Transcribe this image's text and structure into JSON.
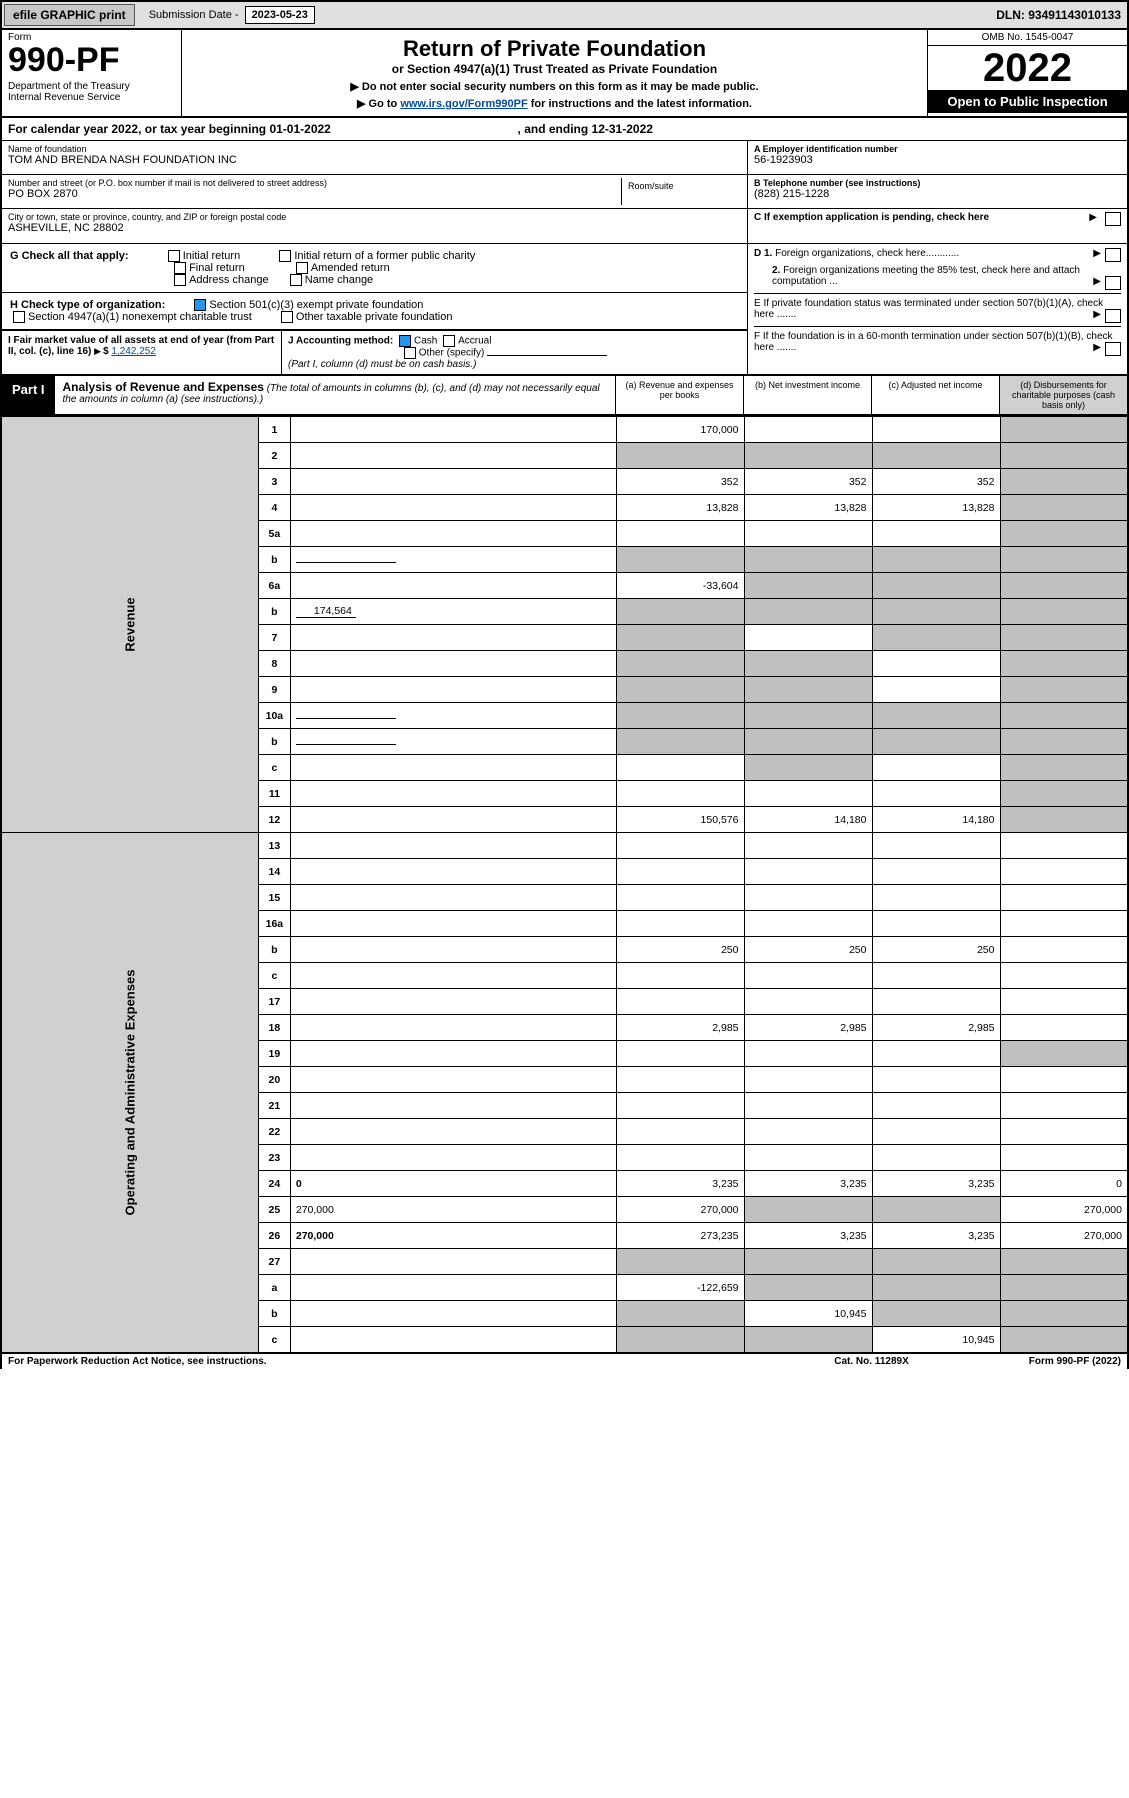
{
  "topbar": {
    "efile_btn": "efile GRAPHIC print",
    "sub_label": "Submission Date - ",
    "sub_date": "2023-05-23",
    "dln": "DLN: 93491143010133"
  },
  "header": {
    "form_label": "Form",
    "form_num": "990-PF",
    "dept": "Department of the Treasury\nInternal Revenue Service",
    "title": "Return of Private Foundation",
    "sub1": "or Section 4947(a)(1) Trust Treated as Private Foundation",
    "sub2a": "▶ Do not enter social security numbers on this form as it may be made public.",
    "sub2b": "▶ Go to ",
    "link": "www.irs.gov/Form990PF",
    "sub2c": " for instructions and the latest information.",
    "omb": "OMB No. 1545-0047",
    "year": "2022",
    "open": "Open to Public Inspection"
  },
  "calyear": {
    "prefix": "For calendar year 2022, or tax year beginning ",
    "begin": "01-01-2022",
    "mid": " , and ending ",
    "end": "12-31-2022"
  },
  "info": {
    "name_label": "Name of foundation",
    "name": "TOM AND BRENDA NASH FOUNDATION INC",
    "addr_label": "Number and street (or P.O. box number if mail is not delivered to street address)",
    "addr": "PO BOX 2870",
    "room_label": "Room/suite",
    "city_label": "City or town, state or province, country, and ZIP or foreign postal code",
    "city": "ASHEVILLE, NC  28802",
    "a_label": "A Employer identification number",
    "a_val": "56-1923903",
    "b_label": "B Telephone number (see instructions)",
    "b_val": "(828) 215-1228",
    "c_label": "C If exemption application is pending, check here"
  },
  "checks": {
    "g": "G Check all that apply:",
    "g_opts": [
      "Initial return",
      "Initial return of a former public charity",
      "Final return",
      "Amended return",
      "Address change",
      "Name change"
    ],
    "h": "H Check type of organization:",
    "h1": "Section 501(c)(3) exempt private foundation",
    "h2": "Section 4947(a)(1) nonexempt charitable trust",
    "h3": "Other taxable private foundation",
    "d1": "D 1. Foreign organizations, check here............",
    "d2": "2. Foreign organizations meeting the 85% test, check here and attach computation ...",
    "e": "E  If private foundation status was terminated under section 507(b)(1)(A), check here .......",
    "i_label": "I Fair market value of all assets at end of year (from Part II, col. (c), line 16)",
    "i_val": "1,242,252",
    "j_label": "J Accounting method:",
    "j_cash": "Cash",
    "j_accrual": "Accrual",
    "j_other": "Other (specify)",
    "j_note": "(Part I, column (d) must be on cash basis.)",
    "f": "F  If the foundation is in a 60-month termination under section 507(b)(1)(B), check here ......."
  },
  "part1": {
    "tab": "Part I",
    "title": "Analysis of Revenue and Expenses",
    "note": "(The total of amounts in columns (b), (c), and (d) may not necessarily equal the amounts in column (a) (see instructions).)",
    "cols": [
      "(a)  Revenue and expenses per books",
      "(b)  Net investment income",
      "(c)  Adjusted net income",
      "(d)  Disbursements for charitable purposes (cash basis only)"
    ]
  },
  "side_labels": {
    "rev": "Revenue",
    "exp": "Operating and Administrative Expenses"
  },
  "rows": [
    {
      "n": "1",
      "d": "",
      "a": "170,000",
      "b": "",
      "c": "",
      "d_shade": true
    },
    {
      "n": "2",
      "d": "",
      "a": "",
      "b": "",
      "c": "",
      "shade_all": true
    },
    {
      "n": "3",
      "d": "",
      "a": "352",
      "b": "352",
      "c": "352",
      "d_shade": true
    },
    {
      "n": "4",
      "d": "",
      "a": "13,828",
      "b": "13,828",
      "c": "13,828",
      "d_shade": true
    },
    {
      "n": "5a",
      "d": "",
      "a": "",
      "b": "",
      "c": "",
      "d_shade": true
    },
    {
      "n": "b",
      "d": "",
      "a": "",
      "b": "",
      "c": "",
      "shade_all": true,
      "inline": true
    },
    {
      "n": "6a",
      "d": "",
      "a": "-33,604",
      "b": "",
      "c": "",
      "bcd_shade": true
    },
    {
      "n": "b",
      "d": "",
      "inline_val": "174,564",
      "a": "",
      "b": "",
      "c": "",
      "shade_all": true
    },
    {
      "n": "7",
      "d": "",
      "a": "",
      "b": "",
      "c": "",
      "a_shade": true,
      "cd_shade": true
    },
    {
      "n": "8",
      "d": "",
      "a": "",
      "b": "",
      "c": "",
      "ab_shade": true,
      "d_shade": true
    },
    {
      "n": "9",
      "d": "",
      "a": "",
      "b": "",
      "c": "",
      "ab_shade": true,
      "d_shade": true
    },
    {
      "n": "10a",
      "d": "",
      "a": "",
      "b": "",
      "c": "",
      "shade_all": true,
      "inline": true
    },
    {
      "n": "b",
      "d": "",
      "a": "",
      "b": "",
      "c": "",
      "shade_all": true,
      "inline": true
    },
    {
      "n": "c",
      "d": "",
      "a": "",
      "b": "",
      "c": "",
      "b_shade": true,
      "d_shade": true
    },
    {
      "n": "11",
      "d": "",
      "a": "",
      "b": "",
      "c": "",
      "d_shade": true
    },
    {
      "n": "12",
      "d": "",
      "a": "150,576",
      "b": "14,180",
      "c": "14,180",
      "bold": true,
      "d_shade": true
    },
    {
      "n": "13",
      "d": "",
      "a": "",
      "b": "",
      "c": ""
    },
    {
      "n": "14",
      "d": "",
      "a": "",
      "b": "",
      "c": ""
    },
    {
      "n": "15",
      "d": "",
      "a": "",
      "b": "",
      "c": ""
    },
    {
      "n": "16a",
      "d": "",
      "a": "",
      "b": "",
      "c": ""
    },
    {
      "n": "b",
      "d": "",
      "a": "250",
      "b": "250",
      "c": "250"
    },
    {
      "n": "c",
      "d": "",
      "a": "",
      "b": "",
      "c": ""
    },
    {
      "n": "17",
      "d": "",
      "a": "",
      "b": "",
      "c": ""
    },
    {
      "n": "18",
      "d": "",
      "a": "2,985",
      "b": "2,985",
      "c": "2,985"
    },
    {
      "n": "19",
      "d": "",
      "a": "",
      "b": "",
      "c": "",
      "d_shade": true
    },
    {
      "n": "20",
      "d": "",
      "a": "",
      "b": "",
      "c": ""
    },
    {
      "n": "21",
      "d": "",
      "a": "",
      "b": "",
      "c": ""
    },
    {
      "n": "22",
      "d": "",
      "a": "",
      "b": "",
      "c": ""
    },
    {
      "n": "23",
      "d": "",
      "a": "",
      "b": "",
      "c": ""
    },
    {
      "n": "24",
      "d": "0",
      "a": "3,235",
      "b": "3,235",
      "c": "3,235",
      "bold": true
    },
    {
      "n": "25",
      "d": "270,000",
      "a": "270,000",
      "b": "",
      "c": "",
      "bc_shade": true
    },
    {
      "n": "26",
      "d": "270,000",
      "a": "273,235",
      "b": "3,235",
      "c": "3,235",
      "bold": true
    },
    {
      "n": "27",
      "d": "",
      "a": "",
      "b": "",
      "c": "",
      "shade_all": true
    },
    {
      "n": "a",
      "d": "",
      "a": "-122,659",
      "b": "",
      "c": "",
      "bcd_shade": true,
      "bold": true
    },
    {
      "n": "b",
      "d": "",
      "a": "",
      "b": "10,945",
      "c": "",
      "a_shade": true,
      "cd_shade": true,
      "bold": true
    },
    {
      "n": "c",
      "d": "",
      "a": "",
      "b": "",
      "c": "10,945",
      "ab_shade": true,
      "d_shade": true,
      "bold": true
    }
  ],
  "footer": {
    "left": "For Paperwork Reduction Act Notice, see instructions.",
    "mid": "Cat. No. 11289X",
    "right": "Form 990-PF (2022)"
  }
}
